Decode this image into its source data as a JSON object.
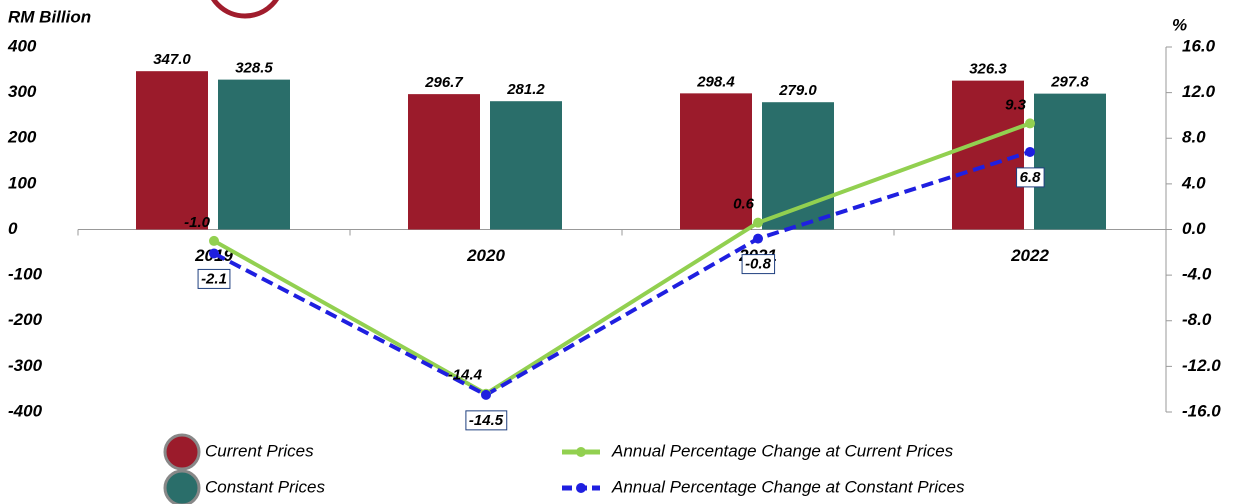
{
  "chart_data": {
    "type": "bar",
    "y_label": "RM Billion",
    "y2_label": "%",
    "categories": [
      "2019",
      "2020",
      "2021",
      "2022"
    ],
    "series": [
      {
        "name": "Current Prices",
        "type": "bar",
        "color": "#9b1b2b",
        "values": [
          347.0,
          296.7,
          298.4,
          326.3
        ],
        "value_labels": [
          "347.0",
          "296.7",
          "298.4",
          "326.3"
        ]
      },
      {
        "name": "Constant Prices",
        "type": "bar",
        "color": "#2a6e6a",
        "values": [
          328.5,
          281.2,
          279.0,
          297.8
        ],
        "value_labels": [
          "328.5",
          "281.2",
          "279.0",
          "297.8"
        ]
      },
      {
        "name": "Annual Percentage Change at Current Prices",
        "type": "line",
        "axis": "y2",
        "color": "#92d050",
        "values": [
          -1.0,
          -14.4,
          0.6,
          9.3
        ],
        "value_labels": [
          "-1.0",
          "-14.4",
          "0.6",
          "9.3"
        ]
      },
      {
        "name": "Annual Percentage Change at Constant Prices",
        "type": "line",
        "axis": "y2",
        "dashed": true,
        "color": "#1f1fe0",
        "values": [
          -2.1,
          -14.5,
          -0.8,
          6.8
        ],
        "value_labels": [
          "-2.1",
          "-14.5",
          "-0.8",
          "6.8"
        ]
      }
    ],
    "ylim": [
      -400,
      400
    ],
    "yticks": [
      -400,
      -300,
      -200,
      -100,
      0,
      100,
      200,
      300,
      400
    ],
    "y2lim": [
      -16,
      16
    ],
    "y2ticks": [
      {
        "value": -16,
        "label": "-16.0"
      },
      {
        "value": -12,
        "label": "-12.0"
      },
      {
        "value": -8,
        "label": "-8.0"
      },
      {
        "value": -4,
        "label": "-4.0"
      },
      {
        "value": 0,
        "label": "0.0"
      },
      {
        "value": 4,
        "label": "4.0"
      },
      {
        "value": 8,
        "label": "8.0"
      },
      {
        "value": 12,
        "label": "12.0"
      },
      {
        "value": 16,
        "label": "16.0"
      }
    ]
  }
}
